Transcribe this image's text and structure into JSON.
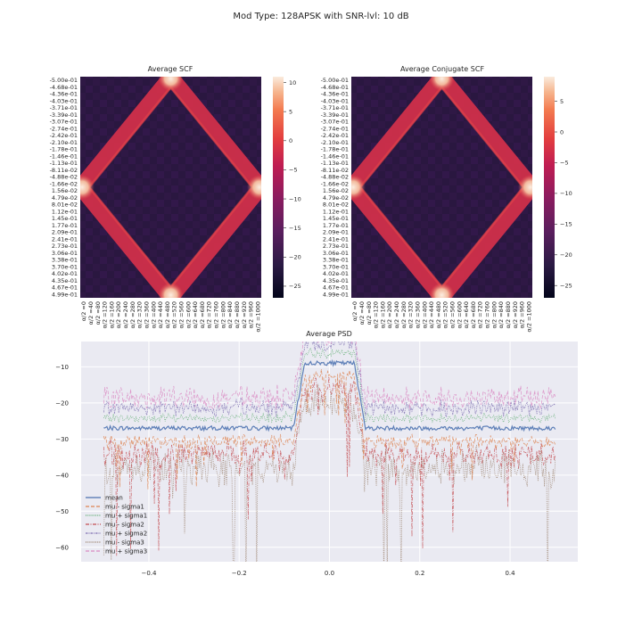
{
  "figure": {
    "suptitle": "Mod Type: 128APSK with SNR-lvl: 10 dB"
  },
  "chart_data": [
    {
      "type": "heatmap",
      "title": "Average SCF",
      "ytick_labels": [
        "-5.00e-01",
        "-4.68e-01",
        "-4.36e-01",
        "-4.03e-01",
        "-3.71e-01",
        "-3.39e-01",
        "-3.07e-01",
        "-2.74e-01",
        "-2.42e-01",
        "-2.10e-01",
        "-1.78e-01",
        "-1.46e-01",
        "-1.13e-01",
        "-8.11e-02",
        "-4.88e-02",
        "-1.66e-02",
        "1.56e-02",
        "4.79e-02",
        "8.01e-02",
        "1.12e-01",
        "1.45e-01",
        "1.77e-01",
        "2.09e-01",
        "2.41e-01",
        "2.73e-01",
        "3.06e-01",
        "3.38e-01",
        "3.70e-01",
        "4.02e-01",
        "4.35e-01",
        "4.67e-01",
        "4.99e-01"
      ],
      "xtick_labels": [
        "α/2 =0",
        "α/2 =40",
        "α/2 =80",
        "α/2 =120",
        "α/2 =160",
        "α/2 =200",
        "α/2 =240",
        "α/2 =280",
        "α/2 =320",
        "α/2 =360",
        "α/2 =400",
        "α/2 =440",
        "α/2 =480",
        "α/2 =520",
        "α/2 =560",
        "α/2 =600",
        "α/2 =640",
        "α/2 =680",
        "α/2 =720",
        "α/2 =760",
        "α/2 =800",
        "α/2 =840",
        "α/2 =880",
        "α/2 =920",
        "α/2 =960",
        "α/2 =1000"
      ],
      "colorbar": {
        "ticks": [
          10,
          5,
          0,
          -5,
          -10,
          -15,
          -20,
          -25
        ],
        "range": [
          -27,
          11
        ]
      }
    },
    {
      "type": "heatmap",
      "title": "Average Conjugate SCF",
      "ytick_labels": [
        "-5.00e-01",
        "-4.68e-01",
        "-4.36e-01",
        "-4.03e-01",
        "-3.71e-01",
        "-3.39e-01",
        "-3.07e-01",
        "-2.74e-01",
        "-2.42e-01",
        "-2.10e-01",
        "-1.78e-01",
        "-1.46e-01",
        "-1.13e-01",
        "-8.11e-02",
        "-4.88e-02",
        "-1.66e-02",
        "1.56e-02",
        "4.79e-02",
        "8.01e-02",
        "1.12e-01",
        "1.45e-01",
        "1.77e-01",
        "2.09e-01",
        "2.41e-01",
        "2.73e-01",
        "3.06e-01",
        "3.38e-01",
        "3.70e-01",
        "4.02e-01",
        "4.35e-01",
        "4.67e-01",
        "4.99e-01"
      ],
      "xtick_labels": [
        "α/2 =0",
        "α/2 =40",
        "α/2 =80",
        "α/2 =120",
        "α/2 =160",
        "α/2 =200",
        "α/2 =240",
        "α/2 =280",
        "α/2 =320",
        "α/2 =360",
        "α/2 =400",
        "α/2 =440",
        "α/2 =480",
        "α/2 =520",
        "α/2 =560",
        "α/2 =600",
        "α/2 =640",
        "α/2 =680",
        "α/2 =720",
        "α/2 =760",
        "α/2 =800",
        "α/2 =840",
        "α/2 =880",
        "α/2 =920",
        "α/2 =960",
        "α/2 =1000"
      ],
      "colorbar": {
        "ticks": [
          5,
          0,
          -5,
          -10,
          -15,
          -20,
          -25
        ],
        "range": [
          -27,
          9
        ]
      }
    },
    {
      "type": "line",
      "title": "Average PSD",
      "xlim": [
        -0.55,
        0.55
      ],
      "ylim": [
        -64,
        -3
      ],
      "xticks": [
        -0.4,
        -0.2,
        0.0,
        0.2,
        0.4
      ],
      "xtick_labels": [
        "−0.4",
        "−0.2",
        "0.0",
        "0.2",
        "0.4"
      ],
      "yticks": [
        -10,
        -20,
        -30,
        -40,
        -50,
        -60
      ],
      "ytick_labels": [
        "−10",
        "−20",
        "−30",
        "−40",
        "−50",
        "−60"
      ],
      "grid": true,
      "legend_position": "lower-left",
      "series_levels": {
        "passband_x": [
          -0.055,
          0.055
        ],
        "noise_floor": -27,
        "passband": -9,
        "spread_sigma": 2.3
      },
      "series": [
        {
          "name": "mean",
          "color": "#4c72b0",
          "dash": "solid"
        },
        {
          "name": "mu - sigma1",
          "color": "#dd8452",
          "dash": "dashed"
        },
        {
          "name": "mu + sigma1",
          "color": "#55a868",
          "dash": "dotted"
        },
        {
          "name": "mu - sigma2",
          "color": "#c44e52",
          "dash": "dashdot"
        },
        {
          "name": "mu + sigma2",
          "color": "#8172b3",
          "dash": "dashdot2"
        },
        {
          "name": "mu - sigma3",
          "color": "#937860",
          "dash": "dotted"
        },
        {
          "name": "mu + sigma3",
          "color": "#da8bc3",
          "dash": "dashed"
        }
      ]
    }
  ]
}
